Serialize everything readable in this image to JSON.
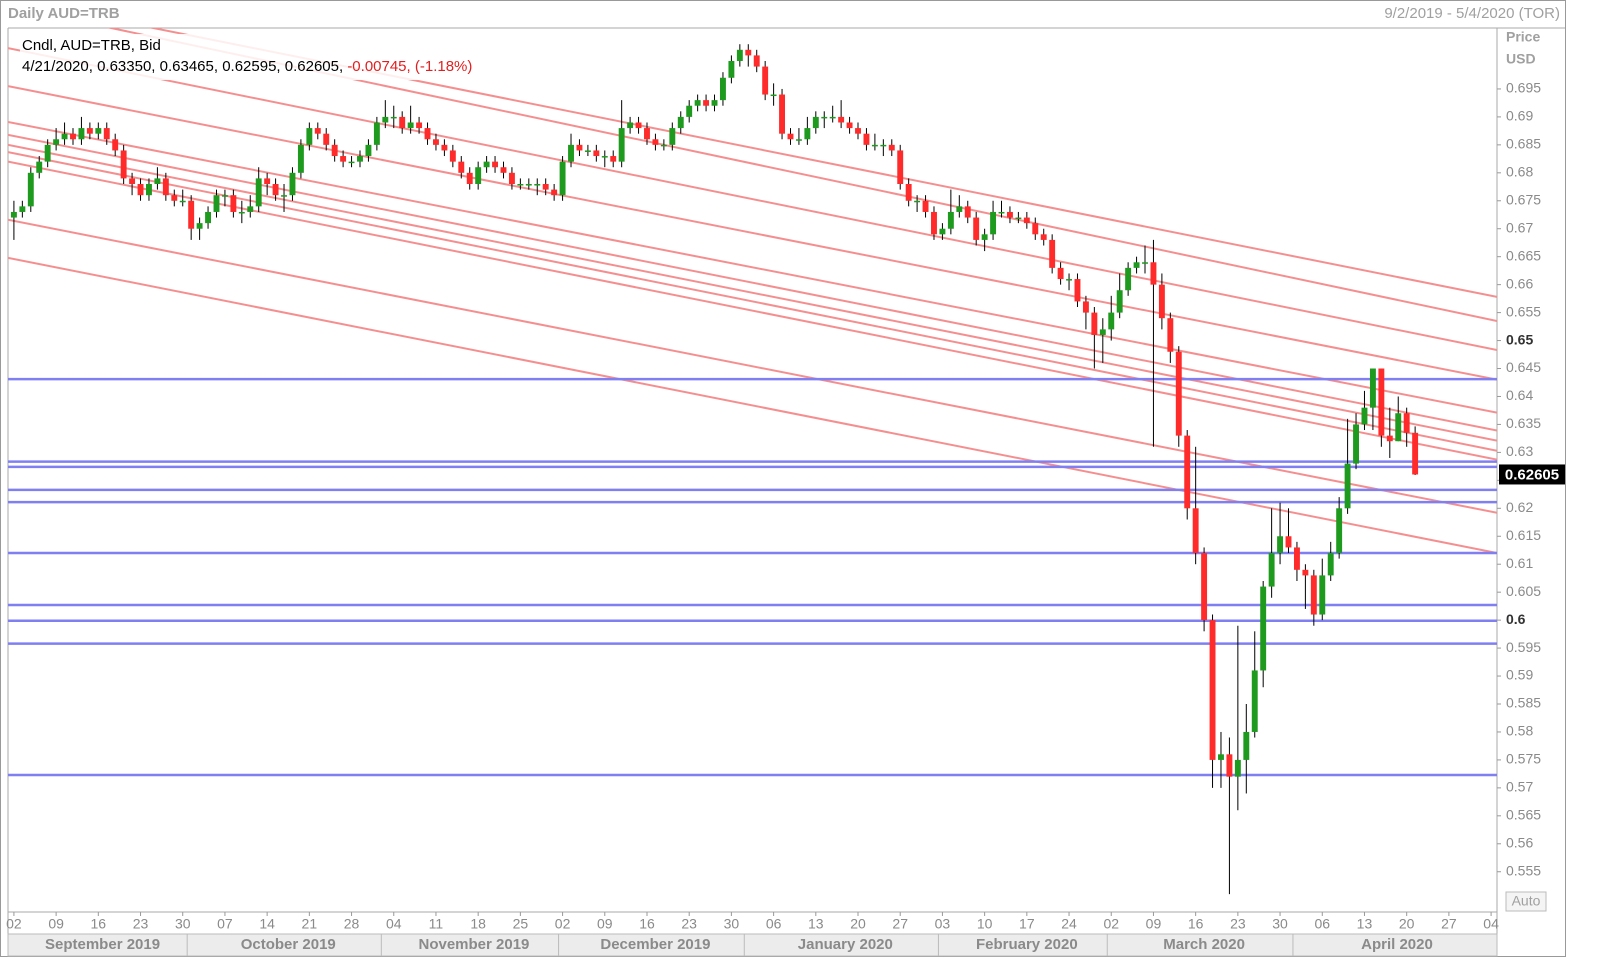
{
  "chart_data": {
    "type": "candlestick",
    "title": "Daily AUD=TRB",
    "date_range": "9/2/2019 - 5/4/2020 (TOR)",
    "series_label": "Cndl, AUD=TRB, Bid",
    "info_date": "4/21/2020",
    "info_values": "0.63350, 0.63465, 0.62595, 0.62605,",
    "info_change": "-0.00745, (-1.18%)",
    "y_label": "Price",
    "y_unit": "USD",
    "auto_button": "Auto",
    "up_color": "#1e9a1e",
    "down_color": "#ff2a2a",
    "open": [
      0.672,
      0.673,
      0.674,
      0.68,
      0.682,
      0.685,
      0.686,
      0.687,
      0.686,
      0.688,
      0.687,
      0.688,
      0.686,
      0.684,
      0.679,
      0.678,
      0.676,
      0.678,
      0.679,
      0.676,
      0.675,
      0.675,
      0.67,
      0.671,
      0.673,
      0.676,
      0.676,
      0.673,
      0.673,
      0.674,
      0.679,
      0.678,
      0.676,
      0.676,
      0.68,
      0.685,
      0.688,
      0.687,
      0.685,
      0.683,
      0.682,
      0.682,
      0.683,
      0.685,
      0.689,
      0.69,
      0.69,
      0.688,
      0.689,
      0.688,
      0.686,
      0.685,
      0.684,
      0.682,
      0.68,
      0.678,
      0.681,
      0.682,
      0.681,
      0.68,
      0.678,
      0.678,
      0.678,
      0.678,
      0.677,
      0.676,
      0.682,
      0.685,
      0.684,
      0.684,
      0.683,
      0.683,
      0.682,
      0.688,
      0.689,
      0.688,
      0.686,
      0.685,
      0.685,
      0.688,
      0.69,
      0.692,
      0.693,
      0.692,
      0.693,
      0.697,
      0.7,
      0.702,
      0.701,
      0.699,
      0.694,
      0.694,
      0.687,
      0.686,
      0.686,
      0.688,
      0.69,
      0.69,
      0.69,
      0.689,
      0.688,
      0.687,
      0.685,
      0.685,
      0.685,
      0.684,
      0.678,
      0.675,
      0.675,
      0.673,
      0.669,
      0.67,
      0.673,
      0.674,
      0.672,
      0.668,
      0.669,
      0.673,
      0.673,
      0.672,
      0.672,
      0.671,
      0.669,
      0.668,
      0.663,
      0.661,
      0.661,
      0.657,
      0.655,
      0.651,
      0.652,
      0.655,
      0.659,
      0.663,
      0.664,
      0.664,
      0.66,
      0.654,
      0.648,
      0.633,
      0.62,
      0.612,
      0.6,
      0.575,
      0.576,
      0.572,
      0.575,
      0.58,
      0.591,
      0.606,
      0.612,
      0.615,
      0.613,
      0.609,
      0.608,
      0.601,
      0.608,
      0.612,
      0.62,
      0.628,
      0.635,
      0.638,
      0.645,
      0.633,
      0.632,
      0.637,
      0.6335
    ],
    "high": [
      0.675,
      0.675,
      0.681,
      0.683,
      0.686,
      0.688,
      0.689,
      0.688,
      0.69,
      0.689,
      0.689,
      0.689,
      0.687,
      0.685,
      0.68,
      0.679,
      0.679,
      0.681,
      0.68,
      0.677,
      0.677,
      0.676,
      0.672,
      0.674,
      0.677,
      0.677,
      0.677,
      0.675,
      0.676,
      0.681,
      0.68,
      0.679,
      0.678,
      0.681,
      0.686,
      0.689,
      0.689,
      0.688,
      0.686,
      0.684,
      0.683,
      0.684,
      0.686,
      0.69,
      0.693,
      0.692,
      0.691,
      0.692,
      0.69,
      0.689,
      0.687,
      0.686,
      0.685,
      0.683,
      0.681,
      0.682,
      0.683,
      0.683,
      0.682,
      0.681,
      0.679,
      0.679,
      0.679,
      0.679,
      0.678,
      0.683,
      0.687,
      0.686,
      0.685,
      0.685,
      0.684,
      0.684,
      0.693,
      0.69,
      0.69,
      0.689,
      0.687,
      0.686,
      0.689,
      0.691,
      0.693,
      0.694,
      0.694,
      0.694,
      0.698,
      0.701,
      0.703,
      0.703,
      0.702,
      0.7,
      0.696,
      0.695,
      0.688,
      0.688,
      0.69,
      0.691,
      0.691,
      0.692,
      0.693,
      0.69,
      0.689,
      0.688,
      0.687,
      0.686,
      0.686,
      0.685,
      0.679,
      0.676,
      0.676,
      0.674,
      0.671,
      0.677,
      0.676,
      0.675,
      0.673,
      0.67,
      0.675,
      0.675,
      0.674,
      0.673,
      0.673,
      0.672,
      0.67,
      0.669,
      0.664,
      0.662,
      0.662,
      0.658,
      0.656,
      0.654,
      0.658,
      0.662,
      0.664,
      0.665,
      0.667,
      0.668,
      0.662,
      0.655,
      0.649,
      0.634,
      0.631,
      0.613,
      0.601,
      0.58,
      0.579,
      0.599,
      0.585,
      0.598,
      0.607,
      0.62,
      0.621,
      0.62,
      0.614,
      0.61,
      0.609,
      0.611,
      0.614,
      0.622,
      0.636,
      0.637,
      0.641,
      0.645,
      0.645,
      0.638,
      0.64,
      0.638,
      0.63465
    ],
    "low": [
      0.668,
      0.672,
      0.673,
      0.679,
      0.681,
      0.684,
      0.685,
      0.685,
      0.685,
      0.686,
      0.686,
      0.685,
      0.683,
      0.678,
      0.676,
      0.675,
      0.675,
      0.677,
      0.675,
      0.674,
      0.674,
      0.668,
      0.668,
      0.67,
      0.672,
      0.674,
      0.672,
      0.671,
      0.672,
      0.673,
      0.676,
      0.675,
      0.673,
      0.675,
      0.679,
      0.684,
      0.686,
      0.684,
      0.682,
      0.681,
      0.681,
      0.681,
      0.682,
      0.684,
      0.688,
      0.688,
      0.687,
      0.687,
      0.687,
      0.685,
      0.684,
      0.683,
      0.681,
      0.679,
      0.677,
      0.677,
      0.68,
      0.68,
      0.679,
      0.677,
      0.677,
      0.677,
      0.676,
      0.676,
      0.675,
      0.675,
      0.681,
      0.683,
      0.683,
      0.682,
      0.681,
      0.681,
      0.681,
      0.687,
      0.687,
      0.685,
      0.684,
      0.684,
      0.684,
      0.687,
      0.689,
      0.691,
      0.691,
      0.691,
      0.692,
      0.696,
      0.699,
      0.699,
      0.698,
      0.693,
      0.692,
      0.686,
      0.685,
      0.685,
      0.685,
      0.687,
      0.688,
      0.689,
      0.688,
      0.687,
      0.686,
      0.684,
      0.684,
      0.683,
      0.683,
      0.677,
      0.674,
      0.673,
      0.672,
      0.668,
      0.668,
      0.669,
      0.672,
      0.671,
      0.667,
      0.666,
      0.668,
      0.672,
      0.671,
      0.671,
      0.67,
      0.668,
      0.667,
      0.662,
      0.66,
      0.659,
      0.656,
      0.652,
      0.645,
      0.646,
      0.65,
      0.654,
      0.658,
      0.662,
      0.662,
      0.631,
      0.652,
      0.646,
      0.631,
      0.618,
      0.61,
      0.598,
      0.57,
      0.57,
      0.551,
      0.566,
      0.569,
      0.579,
      0.588,
      0.604,
      0.61,
      0.612,
      0.607,
      0.602,
      0.599,
      0.6,
      0.607,
      0.611,
      0.619,
      0.627,
      0.634,
      0.634,
      0.631,
      0.629,
      0.632,
      0.631,
      0.62595
    ],
    "close": [
      0.673,
      0.674,
      0.68,
      0.682,
      0.685,
      0.686,
      0.687,
      0.686,
      0.688,
      0.687,
      0.688,
      0.686,
      0.684,
      0.679,
      0.678,
      0.676,
      0.678,
      0.679,
      0.676,
      0.675,
      0.675,
      0.67,
      0.671,
      0.673,
      0.676,
      0.676,
      0.673,
      0.673,
      0.674,
      0.679,
      0.678,
      0.676,
      0.676,
      0.68,
      0.685,
      0.688,
      0.687,
      0.685,
      0.683,
      0.682,
      0.682,
      0.683,
      0.685,
      0.689,
      0.69,
      0.69,
      0.688,
      0.689,
      0.688,
      0.686,
      0.685,
      0.684,
      0.682,
      0.68,
      0.678,
      0.681,
      0.682,
      0.681,
      0.68,
      0.678,
      0.678,
      0.678,
      0.678,
      0.677,
      0.676,
      0.682,
      0.685,
      0.684,
      0.684,
      0.683,
      0.683,
      0.682,
      0.688,
      0.689,
      0.688,
      0.686,
      0.685,
      0.685,
      0.688,
      0.69,
      0.692,
      0.693,
      0.692,
      0.693,
      0.697,
      0.7,
      0.702,
      0.701,
      0.699,
      0.694,
      0.694,
      0.687,
      0.686,
      0.686,
      0.688,
      0.69,
      0.69,
      0.69,
      0.689,
      0.688,
      0.687,
      0.685,
      0.685,
      0.685,
      0.684,
      0.678,
      0.675,
      0.675,
      0.673,
      0.669,
      0.67,
      0.673,
      0.674,
      0.672,
      0.668,
      0.669,
      0.673,
      0.673,
      0.672,
      0.672,
      0.671,
      0.669,
      0.668,
      0.663,
      0.661,
      0.661,
      0.657,
      0.655,
      0.651,
      0.652,
      0.655,
      0.659,
      0.663,
      0.664,
      0.664,
      0.66,
      0.654,
      0.648,
      0.633,
      0.62,
      0.612,
      0.6,
      0.575,
      0.576,
      0.572,
      0.575,
      0.58,
      0.591,
      0.606,
      0.612,
      0.615,
      0.613,
      0.609,
      0.608,
      0.601,
      0.608,
      0.612,
      0.62,
      0.628,
      0.635,
      0.638,
      0.645,
      0.633,
      0.632,
      0.637,
      0.6335,
      0.62605
    ],
    "xlim": [
      -0.7,
      175.7
    ],
    "xticks": [
      {
        "value": 0,
        "label": "02"
      },
      {
        "value": 5,
        "label": "09"
      },
      {
        "value": 10,
        "label": "16"
      },
      {
        "value": 15,
        "label": "23"
      },
      {
        "value": 20,
        "label": "30"
      },
      {
        "value": 25,
        "label": "07"
      },
      {
        "value": 30,
        "label": "14"
      },
      {
        "value": 35,
        "label": "21"
      },
      {
        "value": 40,
        "label": "28"
      },
      {
        "value": 45,
        "label": "04"
      },
      {
        "value": 50,
        "label": "11"
      },
      {
        "value": 55,
        "label": "18"
      },
      {
        "value": 60,
        "label": "25"
      },
      {
        "value": 65,
        "label": "02"
      },
      {
        "value": 70,
        "label": "09"
      },
      {
        "value": 75,
        "label": "16"
      },
      {
        "value": 80,
        "label": "23"
      },
      {
        "value": 85,
        "label": "30"
      },
      {
        "value": 90,
        "label": "06"
      },
      {
        "value": 95,
        "label": "13"
      },
      {
        "value": 100,
        "label": "20"
      },
      {
        "value": 105,
        "label": "27"
      },
      {
        "value": 110,
        "label": "03"
      },
      {
        "value": 115,
        "label": "10"
      },
      {
        "value": 120,
        "label": "17"
      },
      {
        "value": 125,
        "label": "24"
      },
      {
        "value": 130,
        "label": "02"
      },
      {
        "value": 135,
        "label": "09"
      },
      {
        "value": 140,
        "label": "16"
      },
      {
        "value": 145,
        "label": "23"
      },
      {
        "value": 150,
        "label": "30"
      },
      {
        "value": 155,
        "label": "06"
      },
      {
        "value": 160,
        "label": "13"
      },
      {
        "value": 165,
        "label": "20"
      },
      {
        "value": 170,
        "label": "27"
      },
      {
        "value": 175,
        "label": "04"
      }
    ],
    "months": [
      {
        "value": 0,
        "label": "September 2019"
      },
      {
        "value": 21,
        "label": "October 2019"
      },
      {
        "value": 44,
        "label": "November 2019"
      },
      {
        "value": 65,
        "label": "December 2019"
      },
      {
        "value": 87,
        "label": "January 2020"
      },
      {
        "value": 110,
        "label": "February 2020"
      },
      {
        "value": 130,
        "label": "March 2020"
      },
      {
        "value": 152,
        "label": "April 2020"
      }
    ],
    "ylim": [
      0.5478,
      0.7059
    ],
    "yticks": [
      0.555,
      0.56,
      0.565,
      0.57,
      0.575,
      0.58,
      0.585,
      0.59,
      0.595,
      0.6,
      0.605,
      0.61,
      0.615,
      0.62,
      0.625,
      0.63,
      0.635,
      0.64,
      0.645,
      0.65,
      0.655,
      0.66,
      0.665,
      0.67,
      0.675,
      0.68,
      0.685,
      0.69,
      0.695
    ],
    "horizontal_color": "#7f7ff2",
    "horizontal_lines": [
      0.6431,
      0.62835,
      0.6274,
      0.6233,
      0.6211,
      0.612,
      0.6027,
      0.5999,
      0.5958,
      0.5723
    ],
    "trend_color": "#f58f8f",
    "trend_lines": [
      {
        "start": 0.7111,
        "end": 0.6578
      },
      {
        "start": 0.7098,
        "end": 0.6535
      },
      {
        "start": 0.7023,
        "end": 0.6483
      },
      {
        "start": 0.6955,
        "end": 0.643
      },
      {
        "start": 0.6891,
        "end": 0.6371
      },
      {
        "start": 0.6868,
        "end": 0.6339
      },
      {
        "start": 0.685,
        "end": 0.6321
      },
      {
        "start": 0.6837,
        "end": 0.6303
      },
      {
        "start": 0.682,
        "end": 0.6287
      },
      {
        "start": 0.6716,
        "end": 0.6192
      },
      {
        "start": 0.6648,
        "end": 0.612
      }
    ]
  }
}
